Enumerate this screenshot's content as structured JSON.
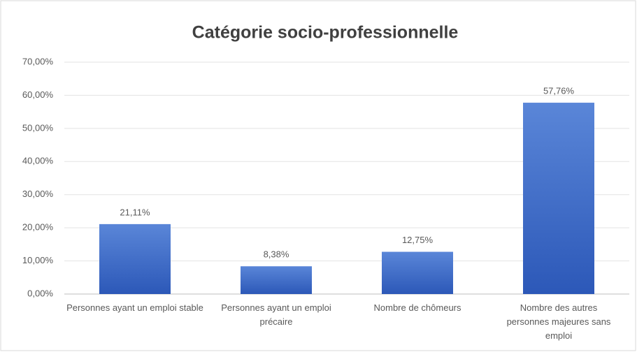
{
  "chart_data": {
    "type": "bar",
    "title": "Catégorie socio-professionnelle",
    "categories": [
      "Personnes ayant un emploi stable",
      "Personnes ayant un emploi précaire",
      "Nombre de chômeurs",
      "Nombre des autres personnes majeures sans emploi"
    ],
    "values": [
      21.11,
      8.38,
      12.75,
      57.76
    ],
    "value_labels": [
      "21,11%",
      "8,38%",
      "12,75%",
      "57,76%"
    ],
    "color": "#3f6cc9",
    "ylim": [
      0,
      70
    ],
    "yticks": [
      {
        "value": 0,
        "label": "0,00%"
      },
      {
        "value": 10,
        "label": "10,00%"
      },
      {
        "value": 20,
        "label": "20,00%"
      },
      {
        "value": 30,
        "label": "30,00%"
      },
      {
        "value": 40,
        "label": "40,00%"
      },
      {
        "value": 50,
        "label": "50,00%"
      },
      {
        "value": 60,
        "label": "60,00%"
      },
      {
        "value": 70,
        "label": "70,00%"
      }
    ],
    "grid": true
  }
}
